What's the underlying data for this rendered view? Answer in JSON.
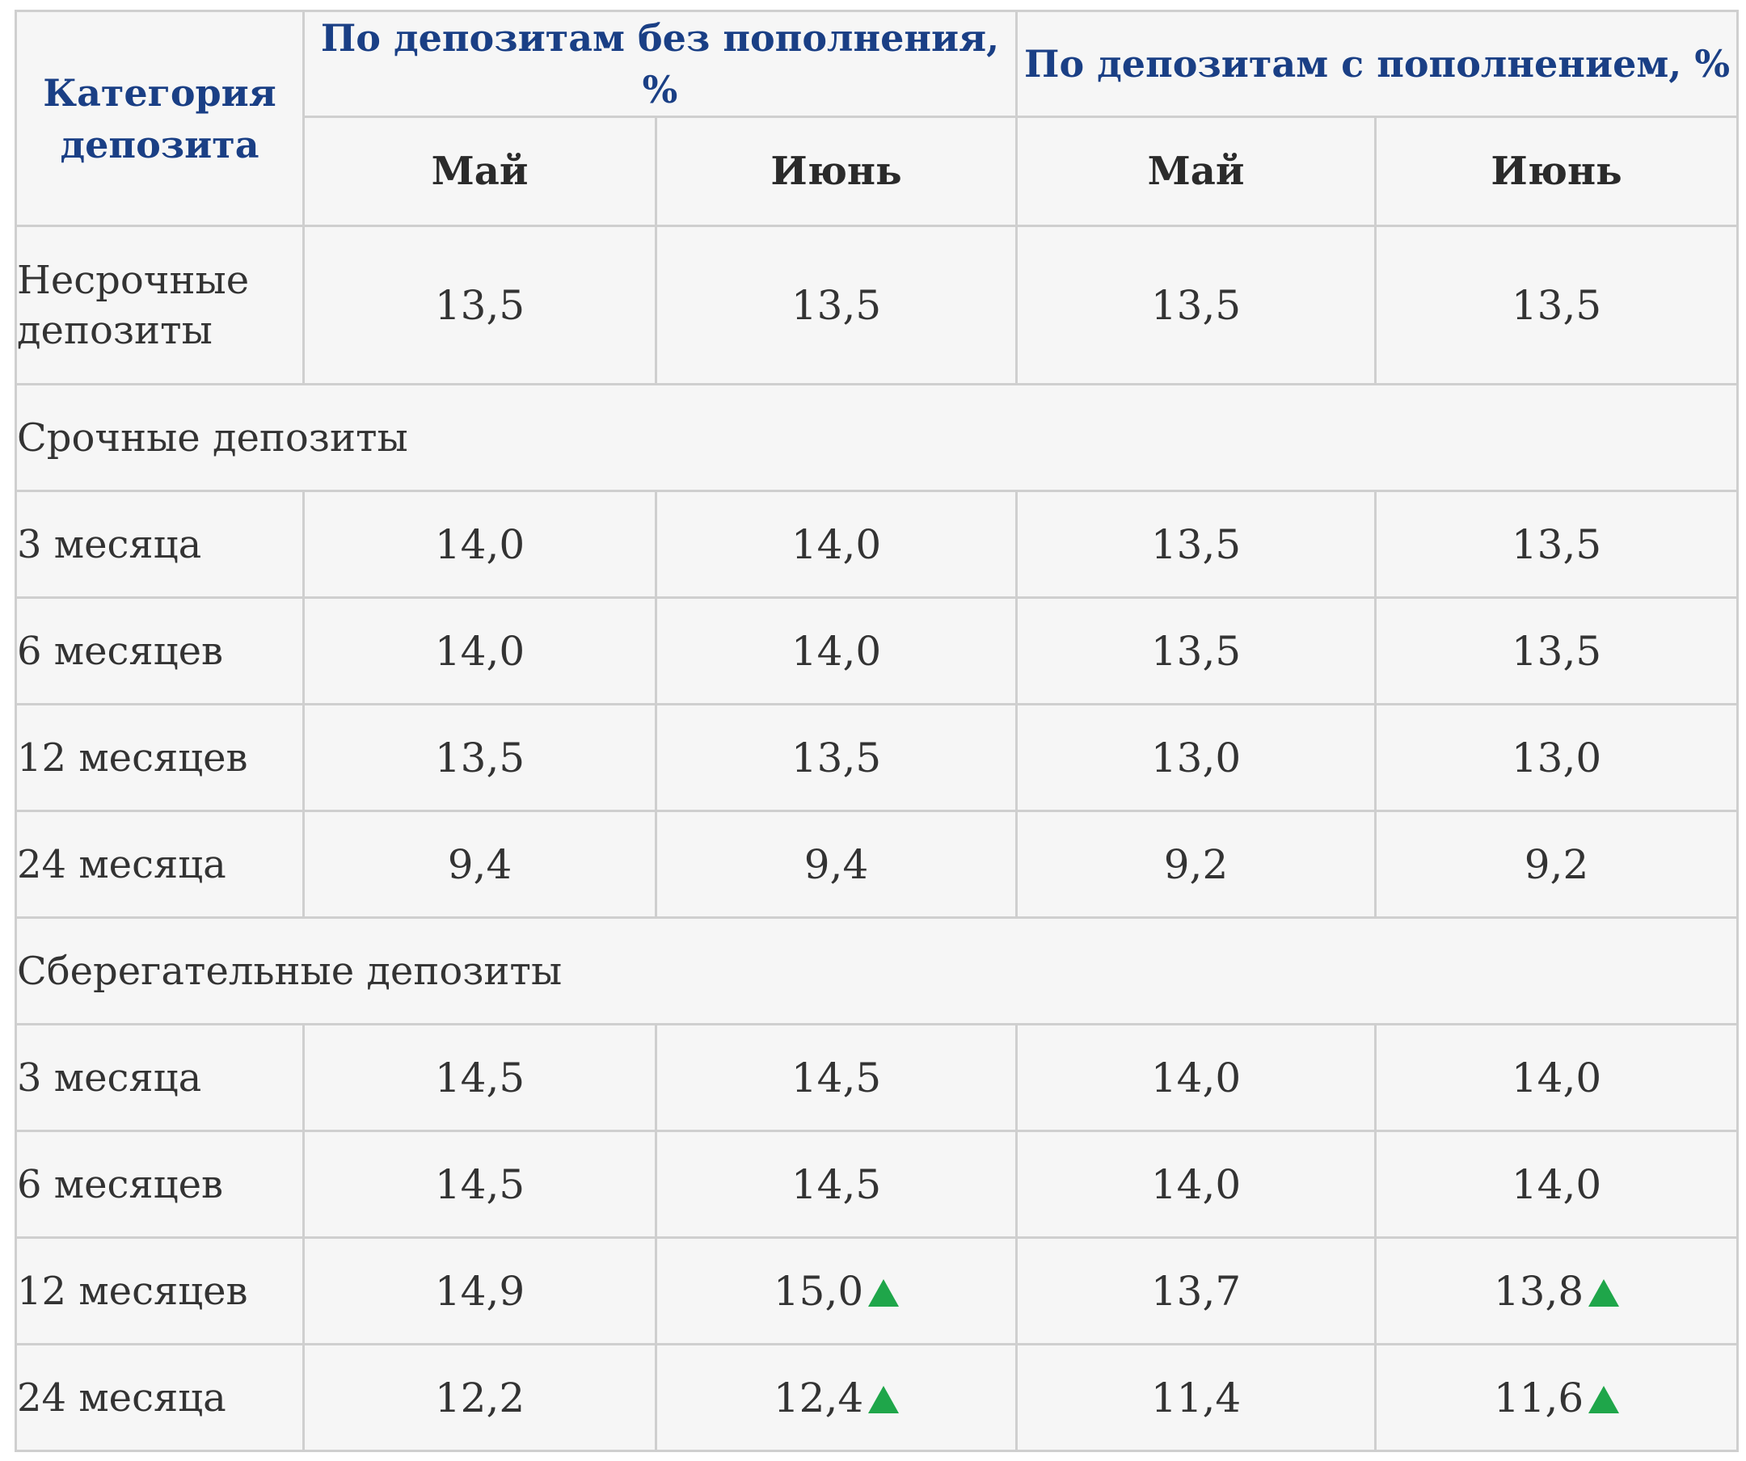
{
  "header": {
    "category": "Категория депозита",
    "group_without": "По депозитам без пополнения, %",
    "group_with": "По депозитам с пополнением, %",
    "months": [
      "Май",
      "Июнь",
      "Май",
      "Июнь"
    ]
  },
  "colors": {
    "header_blue": "#1a3f85",
    "arrow_up": "#1fa64a",
    "background": "#f6f6f6",
    "border": "#cfcfcf"
  },
  "demand": {
    "label": "Несрочные депозиты",
    "values": [
      "13,5",
      "13,5",
      "13,5",
      "13,5"
    ]
  },
  "sections": [
    {
      "title": "Срочные депозиты",
      "rows": [
        {
          "label": "3 месяца",
          "values": [
            "14,0",
            "14,0",
            "13,5",
            "13,5"
          ]
        },
        {
          "label": "6 месяцев",
          "values": [
            "14,0",
            "14,0",
            "13,5",
            "13,5"
          ]
        },
        {
          "label": "12 месяцев",
          "values": [
            "13,5",
            "13,5",
            "13,0",
            "13,0"
          ]
        },
        {
          "label": "24 месяца",
          "values": [
            "9,4",
            "9,4",
            "9,2",
            "9,2"
          ]
        }
      ]
    },
    {
      "title": "Сберегательные депозиты",
      "rows": [
        {
          "label": "3 месяца",
          "values": [
            "14,5",
            "14,5",
            "14,0",
            "14,0"
          ]
        },
        {
          "label": "6 месяцев",
          "values": [
            "14,5",
            "14,5",
            "14,0",
            "14,0"
          ]
        },
        {
          "label": "12 месяцев",
          "values": [
            "14,9",
            "15,0",
            "13,7",
            "13,8"
          ],
          "up_icons": [
            false,
            true,
            false,
            true
          ]
        },
        {
          "label": "24 месяца",
          "values": [
            "12,2",
            "12,4",
            "11,4",
            "11,6"
          ],
          "up_icons": [
            false,
            true,
            false,
            true
          ]
        }
      ]
    }
  ]
}
